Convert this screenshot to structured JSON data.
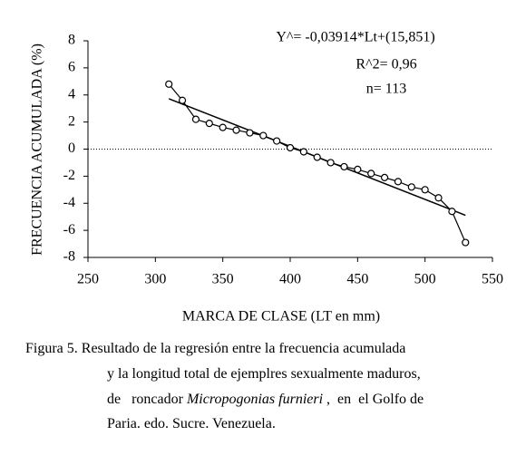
{
  "chart_data": {
    "type": "line",
    "x_label": "MARCA DE CLASE (LT en mm)",
    "y_label": "FRECUENCIA ACUMULADA (%)",
    "annotations": [
      "Y^= -0,03914*Lt+(15,851)",
      "R^2= 0,96",
      "n= 113"
    ],
    "x": [
      310,
      320,
      330,
      340,
      350,
      360,
      370,
      380,
      390,
      400,
      410,
      420,
      430,
      440,
      450,
      460,
      470,
      480,
      490,
      500,
      510,
      520,
      530
    ],
    "values": [
      4.8,
      3.6,
      2.2,
      1.9,
      1.6,
      1.4,
      1.2,
      1.0,
      0.6,
      0.1,
      -0.2,
      -0.6,
      -1.0,
      -1.3,
      -1.5,
      -1.8,
      -2.1,
      -2.4,
      -2.8,
      -3.0,
      -3.6,
      -4.6,
      -6.9
    ],
    "color": "#000000",
    "trendline": {
      "x": [
        310,
        530
      ],
      "values": [
        3.72,
        -4.89
      ]
    },
    "xlim": [
      250,
      550
    ],
    "xticks": [
      250,
      300,
      350,
      400,
      450,
      500,
      550
    ],
    "ylim": [
      -8,
      8
    ],
    "yticks": [
      -8,
      -6,
      -4,
      -2,
      0,
      2,
      4,
      6,
      8
    ],
    "zero_line": true
  },
  "caption": {
    "lines": [
      [
        "Figura  5.  Resultado de la regresión entre la frecuencia acumulada"
      ],
      [
        "y  la longitud total de ejemplres  sexualmente   maduros,"
      ],
      [
        "de   roncador ",
        "Micropogonias furnieri",
        " ,  en  el Golfo de"
      ],
      [
        "Paria. edo. Sucre. Venezuela."
      ]
    ]
  }
}
